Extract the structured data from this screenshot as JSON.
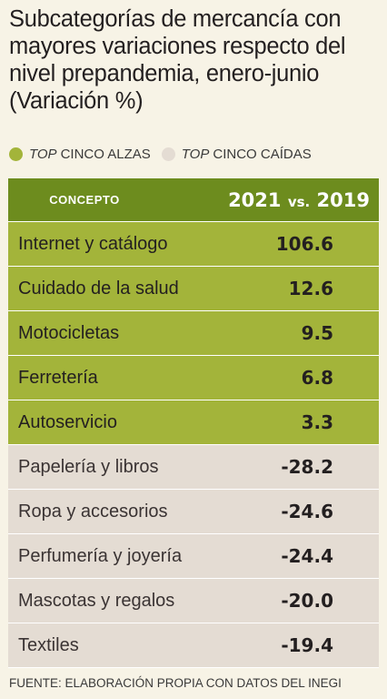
{
  "title": "Subcategorías de mercancía con mayores variaciones respecto del nivel prepandemia, enero-junio (Variación %)",
  "legend": {
    "up": {
      "prefix": "TOP",
      "label": "CINCO ALZAS"
    },
    "down": {
      "prefix": "TOP",
      "label": "CINCO CAÍDAS"
    }
  },
  "colors": {
    "header": "#6d8c1e",
    "up_row": "#a3b43a",
    "down_row": "#e4dcd3",
    "up_dot": "#a3b43a",
    "down_dot": "#e4dcd3"
  },
  "header": {
    "concept": "CONCEPTO",
    "year_a": "2021",
    "vs": "vs.",
    "year_b": "2019"
  },
  "source": "FUENTE: ELABORACIÓN PROPIA CON DATOS DEL INEGI",
  "chart_data": {
    "type": "table",
    "columns": [
      "CONCEPTO",
      "2021 vs. 2019"
    ],
    "rows": [
      {
        "name": "Internet y catálogo",
        "value": "106.6",
        "group": "up"
      },
      {
        "name": "Cuidado de la salud",
        "value": "12.6",
        "group": "up"
      },
      {
        "name": "Motocicletas",
        "value": "9.5",
        "group": "up"
      },
      {
        "name": "Ferretería",
        "value": "6.8",
        "group": "up"
      },
      {
        "name": "Autoservicio",
        "value": "3.3",
        "group": "up"
      },
      {
        "name": "Papelería y libros",
        "value": "-28.2",
        "group": "down"
      },
      {
        "name": "Ropa y accesorios",
        "value": "-24.6",
        "group": "down"
      },
      {
        "name": "Perfumería y joyería",
        "value": "-24.4",
        "group": "down"
      },
      {
        "name": "Mascotas y regalos",
        "value": "-20.0",
        "group": "down"
      },
      {
        "name": "Textiles",
        "value": "-19.4",
        "group": "down"
      }
    ]
  }
}
